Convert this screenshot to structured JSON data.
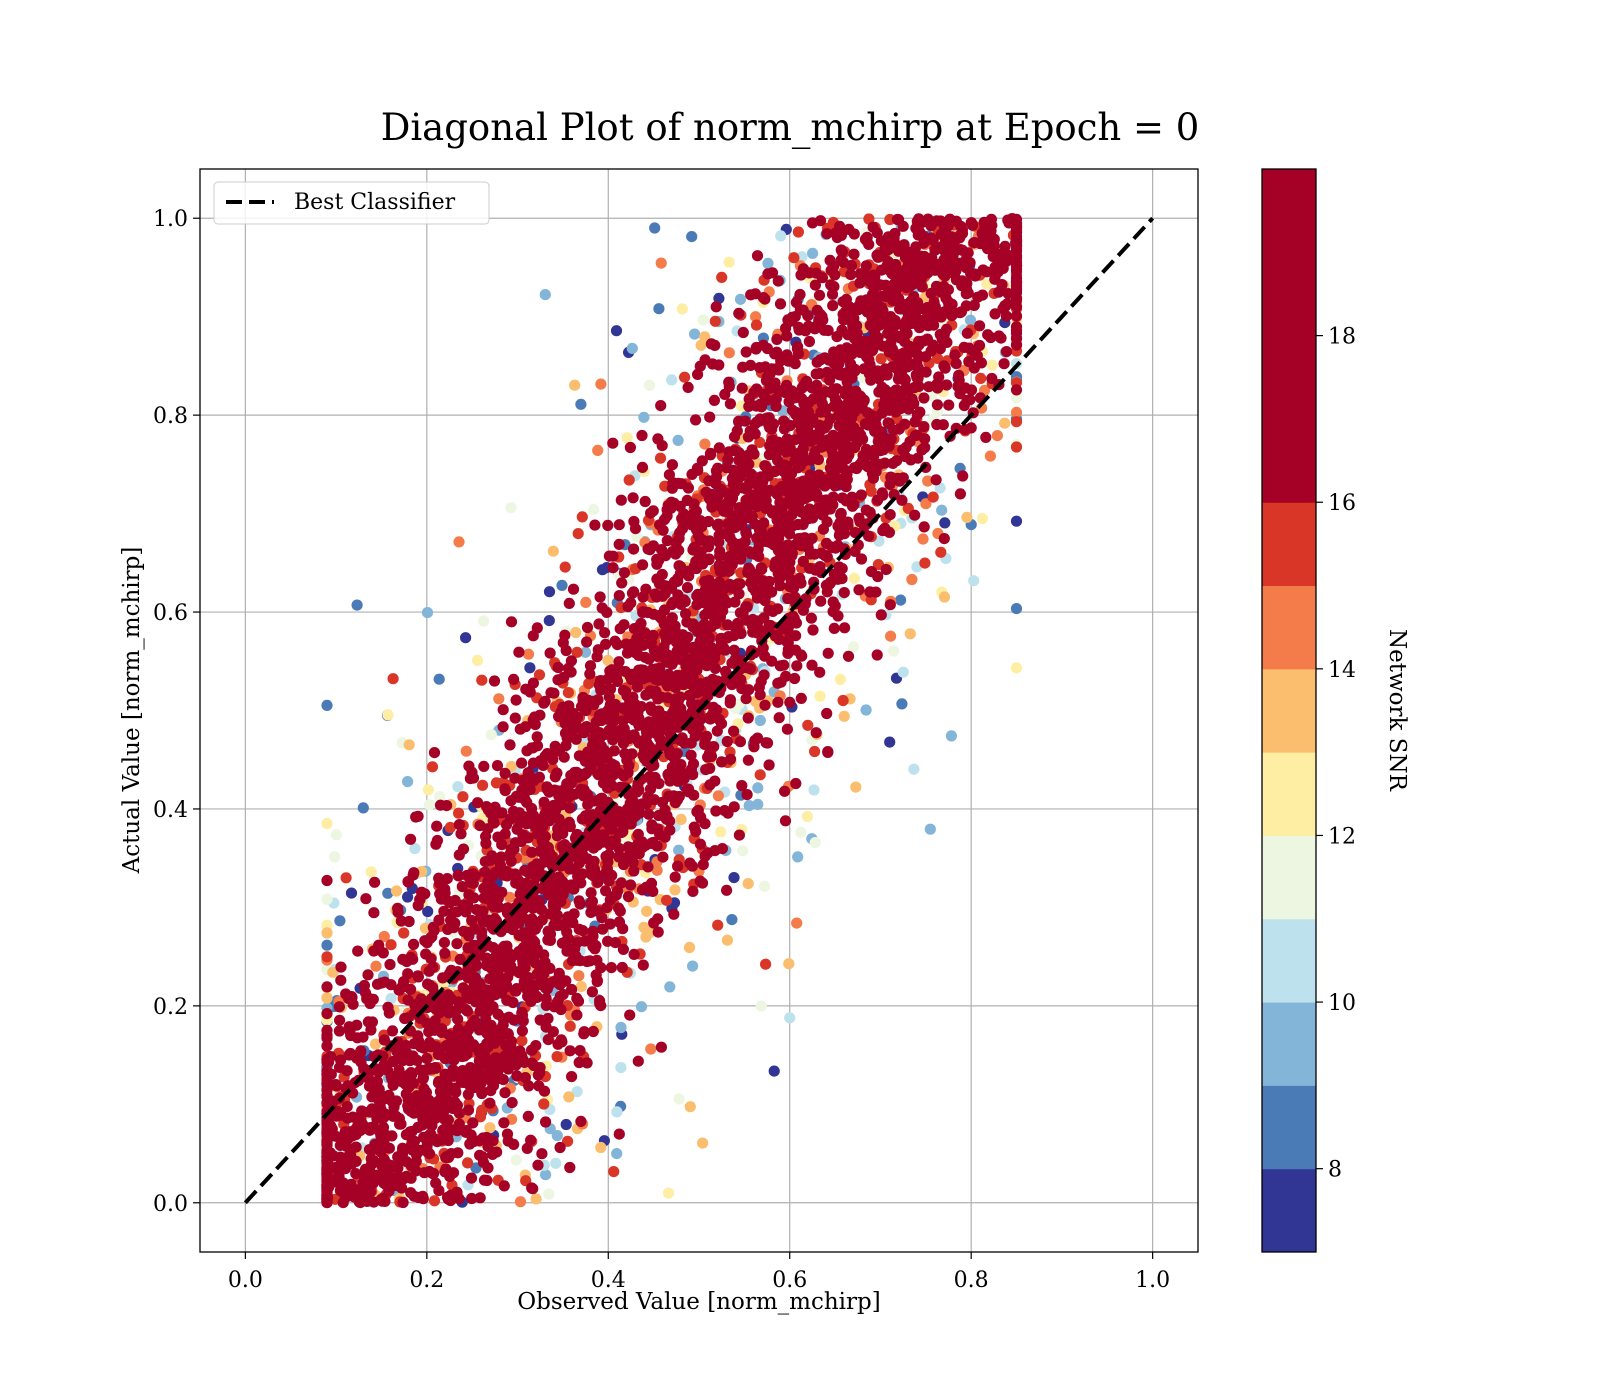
{
  "chart_data": {
    "type": "scatter",
    "title": "Diagonal Plot of norm_mchirp at Epoch = 0",
    "xlabel": "Observed Value [norm_mchirp]",
    "ylabel": "Actual Value [norm_mchirp]",
    "xlim": [
      -0.05,
      1.05
    ],
    "ylim": [
      -0.05,
      1.05
    ],
    "x_ticks": [
      "0.0",
      "0.2",
      "0.4",
      "0.6",
      "0.8",
      "1.0"
    ],
    "y_ticks": [
      "0.0",
      "0.2",
      "0.4",
      "0.6",
      "0.8",
      "1.0"
    ],
    "x_tick_values": [
      0.0,
      0.2,
      0.4,
      0.6,
      0.8,
      1.0
    ],
    "y_tick_values": [
      0.0,
      0.2,
      0.4,
      0.6,
      0.8,
      1.0
    ],
    "grid": true,
    "legend": {
      "position": "top-left",
      "entries": [
        {
          "label": "Best Classifier",
          "style": "dashed",
          "color": "#000000"
        }
      ]
    },
    "reference_line": {
      "label": "Best Classifier",
      "x": [
        0.0,
        1.0
      ],
      "y": [
        0.0,
        1.0
      ]
    },
    "colorbar": {
      "label": "Network SNR",
      "range": [
        7,
        20
      ],
      "tick_labels": [
        "8",
        "10",
        "12",
        "14",
        "16",
        "18"
      ],
      "tick_values": [
        8,
        10,
        12,
        14,
        16,
        18
      ],
      "bands": [
        {
          "from": 7,
          "to": 8,
          "color": "#313695"
        },
        {
          "from": 8,
          "to": 9,
          "color": "#4a7bb7"
        },
        {
          "from": 9,
          "to": 10,
          "color": "#82b5d7"
        },
        {
          "from": 10,
          "to": 11,
          "color": "#bde2ee"
        },
        {
          "from": 11,
          "to": 12,
          "color": "#ecf6e0"
        },
        {
          "from": 12,
          "to": 13,
          "color": "#feeea4"
        },
        {
          "from": 13,
          "to": 14,
          "color": "#fbbe6e"
        },
        {
          "from": 14,
          "to": 15,
          "color": "#f47c4a"
        },
        {
          "from": 15,
          "to": 16,
          "color": "#da3627"
        },
        {
          "from": 16,
          "to": 20,
          "color": "#a50026"
        }
      ]
    },
    "scatter_summary": {
      "point_color_by": "Network SNR",
      "x_range": [
        0.09,
        0.85
      ],
      "y_range": [
        0.0,
        1.0
      ],
      "high_snr_band_halfwidth": 0.1,
      "low_snr_spread": "wider band around diagonal, upper-left and lower-right fringes"
    }
  }
}
